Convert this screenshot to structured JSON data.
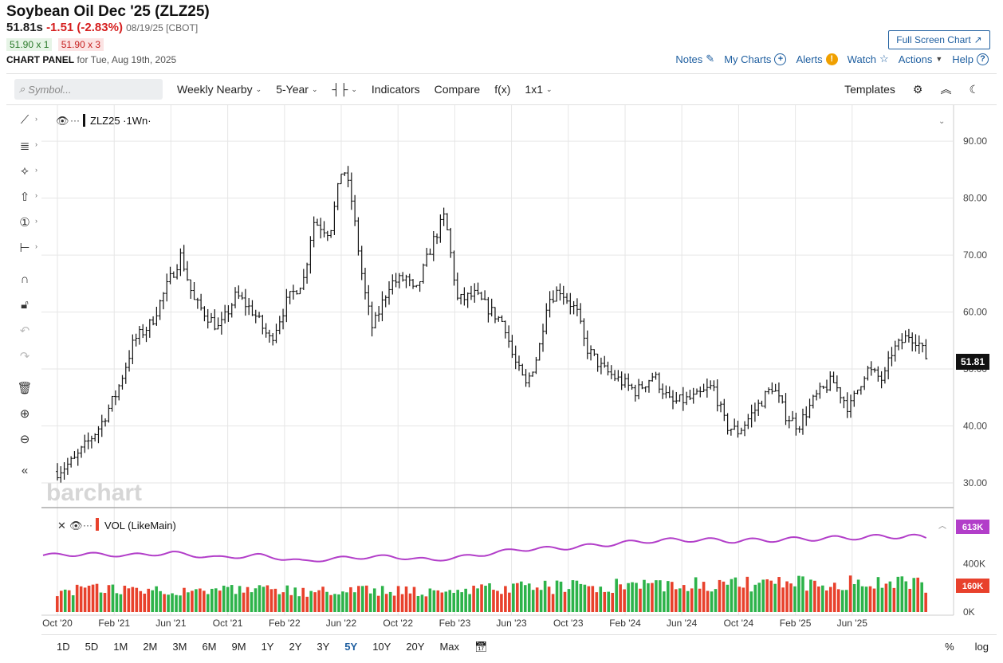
{
  "header": {
    "title": "Soybean Oil Dec '25 (ZLZ25)",
    "last": "51.81s",
    "change": "-1.51 (-2.83%)",
    "date_exchange": "08/19/25 [CBOT]",
    "bid": "51.90 x 1",
    "ask": "51.90 x 3",
    "panel_label": "CHART PANEL",
    "panel_date": "for Tue, Aug 19th, 2025",
    "fullscreen_label": "Full Screen Chart"
  },
  "top_links": {
    "notes": "Notes",
    "mycharts": "My Charts",
    "alerts": "Alerts",
    "watch": "Watch",
    "actions": "Actions",
    "help": "Help"
  },
  "toolbar": {
    "search_placeholder": "Symbol...",
    "frequency": "Weekly Nearby",
    "range": "5-Year",
    "indicators": "Indicators",
    "compare": "Compare",
    "fx": "f(x)",
    "layout": "1x1",
    "templates": "Templates"
  },
  "periods": [
    "1D",
    "5D",
    "1M",
    "2M",
    "3M",
    "6M",
    "9M",
    "1Y",
    "2Y",
    "3Y",
    "5Y",
    "10Y",
    "20Y",
    "Max"
  ],
  "active_period": "5Y",
  "period_right": {
    "percent": "%",
    "log": "log"
  },
  "colors": {
    "up": "#2db34a",
    "down": "#e8412c",
    "volume_line": "#b23ec9",
    "link": "#1f5fa0"
  },
  "chart_data": {
    "type": "bar",
    "price_legend": "ZLZ25 ·1Wn·",
    "volume_legend": "VOL (LikeMain)",
    "watermark": "barchart",
    "x_tick_labels": [
      "Oct '20",
      "Feb '21",
      "Jun '21",
      "Oct '21",
      "Feb '22",
      "Jun '22",
      "Oct '22",
      "Feb '23",
      "Jun '23",
      "Oct '23",
      "Feb '24",
      "Jun '24",
      "Oct '24",
      "Feb '25",
      "Jun '25"
    ],
    "x_tick_fraction": [
      0.0,
      0.0667,
      0.1333,
      0.2,
      0.2667,
      0.3333,
      0.4,
      0.4667,
      0.5333,
      0.6,
      0.6667,
      0.7333,
      0.8,
      0.8667,
      0.9333
    ],
    "price_y_ticks": [
      "90.00",
      "80.00",
      "70.00",
      "60.00",
      "50.00",
      "40.00",
      "30.00"
    ],
    "price_ylim": [
      25.8,
      94.5
    ],
    "volume_y_ticks": [
      "400K",
      "0K"
    ],
    "volume_ylim": [
      0,
      780000
    ],
    "last_price_label": "51.81",
    "last_price": 51.81,
    "volume_avg_label": "613K",
    "volume_avg": 613000,
    "volume_last_label": "160K",
    "volume_last": 160000,
    "price_path": [
      [
        0.0,
        32
      ],
      [
        0.02,
        34
      ],
      [
        0.05,
        40
      ],
      [
        0.07,
        46
      ],
      [
        0.09,
        55
      ],
      [
        0.11,
        58
      ],
      [
        0.13,
        65
      ],
      [
        0.145,
        70
      ],
      [
        0.16,
        62
      ],
      [
        0.19,
        57
      ],
      [
        0.21,
        63
      ],
      [
        0.23,
        60
      ],
      [
        0.25,
        55
      ],
      [
        0.27,
        62
      ],
      [
        0.29,
        66
      ],
      [
        0.3,
        76
      ],
      [
        0.32,
        74
      ],
      [
        0.335,
        86
      ],
      [
        0.345,
        80
      ],
      [
        0.36,
        64
      ],
      [
        0.37,
        57
      ],
      [
        0.39,
        65
      ],
      [
        0.41,
        66
      ],
      [
        0.42,
        63
      ],
      [
        0.44,
        72
      ],
      [
        0.455,
        77
      ],
      [
        0.46,
        72
      ],
      [
        0.47,
        62
      ],
      [
        0.49,
        63
      ],
      [
        0.51,
        60
      ],
      [
        0.525,
        58
      ],
      [
        0.535,
        52
      ],
      [
        0.55,
        47
      ],
      [
        0.565,
        53
      ],
      [
        0.575,
        62
      ],
      [
        0.59,
        64
      ],
      [
        0.61,
        60
      ],
      [
        0.62,
        54
      ],
      [
        0.64,
        50
      ],
      [
        0.66,
        48
      ],
      [
        0.68,
        46
      ],
      [
        0.7,
        49
      ],
      [
        0.72,
        44
      ],
      [
        0.75,
        45
      ],
      [
        0.77,
        47
      ],
      [
        0.785,
        40
      ],
      [
        0.8,
        39
      ],
      [
        0.82,
        43
      ],
      [
        0.84,
        47
      ],
      [
        0.855,
        42
      ],
      [
        0.87,
        40
      ],
      [
        0.89,
        45
      ],
      [
        0.91,
        48
      ],
      [
        0.93,
        43
      ],
      [
        0.95,
        50
      ],
      [
        0.97,
        48
      ],
      [
        0.98,
        53
      ],
      [
        1.0,
        56
      ],
      [
        1.01,
        55
      ],
      [
        1.02,
        52
      ]
    ],
    "volume_avg_path": [
      [
        0.0,
        470
      ],
      [
        0.05,
        480
      ],
      [
        0.1,
        470
      ],
      [
        0.15,
        490
      ],
      [
        0.2,
        450
      ],
      [
        0.25,
        470
      ],
      [
        0.3,
        420
      ],
      [
        0.35,
        450
      ],
      [
        0.4,
        460
      ],
      [
        0.45,
        430
      ],
      [
        0.5,
        470
      ],
      [
        0.55,
        520
      ],
      [
        0.6,
        530
      ],
      [
        0.65,
        560
      ],
      [
        0.7,
        590
      ],
      [
        0.75,
        600
      ],
      [
        0.8,
        590
      ],
      [
        0.85,
        600
      ],
      [
        0.9,
        610
      ],
      [
        0.95,
        620
      ],
      [
        1.0,
        630
      ],
      [
        1.02,
        613
      ]
    ]
  }
}
